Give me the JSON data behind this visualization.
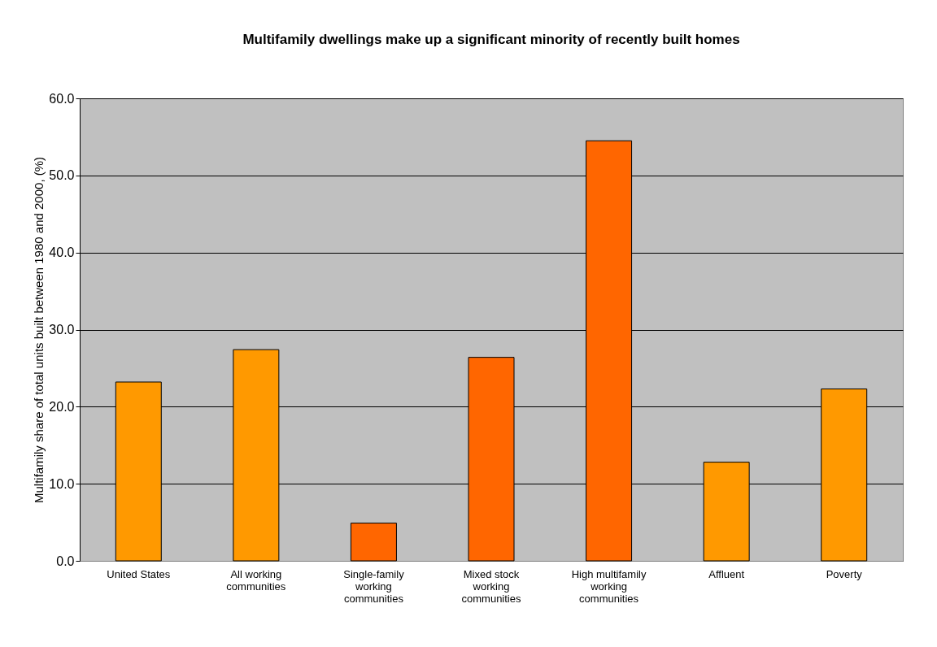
{
  "chart_data": {
    "type": "bar",
    "title": "Multifamily dwellings make up a significant minority of recently built homes",
    "ylabel": "Multifamily share of total units built between 1980 and 2000, (%)",
    "categories": [
      "United States",
      "All working communities",
      "Single-family working communities",
      "Mixed stock working communities",
      "High multifamily working communities",
      "Affluent",
      "Poverty"
    ],
    "values": [
      23.2,
      27.4,
      4.9,
      26.4,
      54.5,
      12.8,
      22.3
    ],
    "colors": [
      "#ff9900",
      "#ff9900",
      "#ff6600",
      "#ff6600",
      "#ff6600",
      "#ff9900",
      "#ff9900"
    ],
    "ylim": [
      0,
      60
    ],
    "yticks": [
      {
        "value": 0,
        "label": "0.0"
      },
      {
        "value": 10,
        "label": "10.0"
      },
      {
        "value": 20,
        "label": "20.0"
      },
      {
        "value": 30,
        "label": "30.0"
      },
      {
        "value": 40,
        "label": "40.0"
      },
      {
        "value": 50,
        "label": "50.0"
      },
      {
        "value": 60,
        "label": "60.0"
      }
    ],
    "grid": "y"
  }
}
